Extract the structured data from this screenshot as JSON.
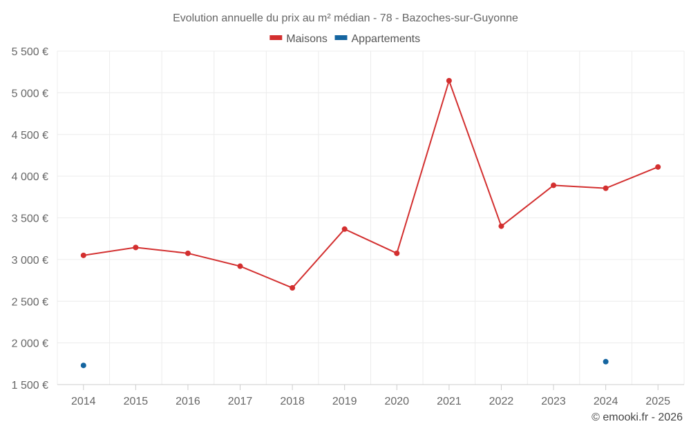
{
  "chart_data": {
    "type": "line",
    "title": "Evolution annuelle du prix au m² médian - 78 - Bazoches-sur-Guyonne",
    "categories": [
      "2014",
      "2015",
      "2016",
      "2017",
      "2018",
      "2019",
      "2020",
      "2021",
      "2022",
      "2023",
      "2024",
      "2025"
    ],
    "series": [
      {
        "name": "Maisons",
        "color": "#d32f2f",
        "values": [
          3050,
          3145,
          3075,
          2920,
          2660,
          3365,
          3075,
          5145,
          3400,
          3890,
          3855,
          4110
        ]
      },
      {
        "name": "Appartements",
        "color": "#1565a0",
        "values": [
          1730,
          null,
          null,
          null,
          null,
          null,
          null,
          null,
          null,
          null,
          1775,
          null
        ]
      }
    ],
    "ylim": [
      1500,
      5500
    ],
    "yticks": [
      {
        "value": 1500,
        "label": "1 500 €"
      },
      {
        "value": 2000,
        "label": "2 000 €"
      },
      {
        "value": 2500,
        "label": "2 500 €"
      },
      {
        "value": 3000,
        "label": "3 000 €"
      },
      {
        "value": 3500,
        "label": "3 500 €"
      },
      {
        "value": 4000,
        "label": "4 000 €"
      },
      {
        "value": 4500,
        "label": "4 500 €"
      },
      {
        "value": 5000,
        "label": "5 000 €"
      },
      {
        "value": 5500,
        "label": "5 500 €"
      }
    ],
    "xlabel": "",
    "ylabel": "",
    "grid": true,
    "legend_position": "top-center"
  },
  "credit": "© emooki.fr - 2026"
}
